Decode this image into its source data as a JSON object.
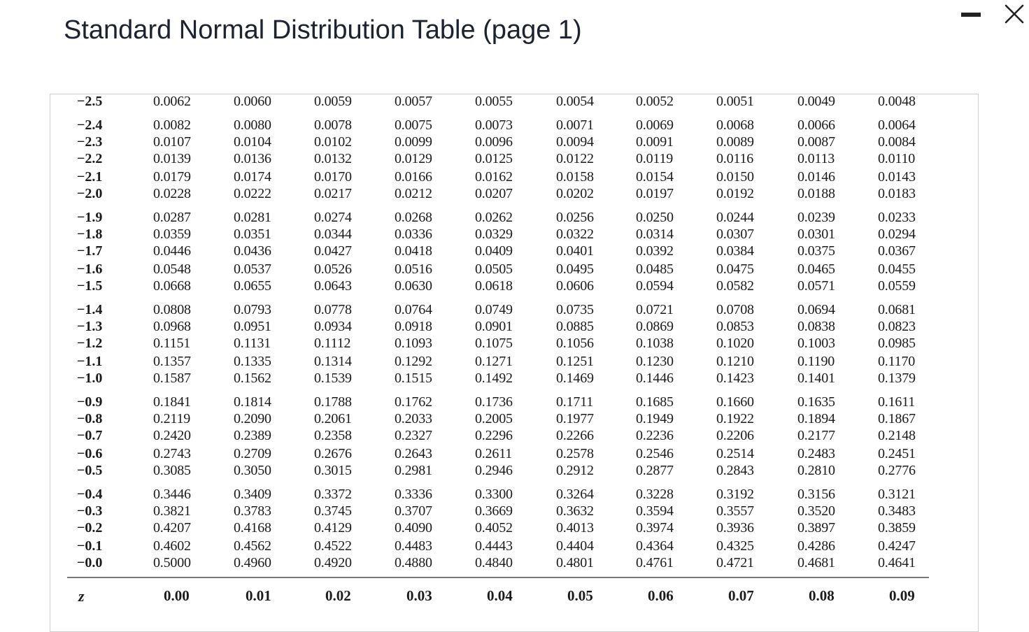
{
  "title": "Standard Normal Distribution Table (page 1)",
  "window_controls": {
    "minimize": "minimize",
    "close": "close"
  },
  "table": {
    "header_row_label": "z",
    "columns": [
      "0.00",
      "0.01",
      "0.02",
      "0.03",
      "0.04",
      "0.05",
      "0.06",
      "0.07",
      "0.08",
      "0.09"
    ],
    "rows": [
      {
        "z": "−2.5",
        "values": [
          "0.0062",
          "0.0060",
          "0.0059",
          "0.0057",
          "0.0055",
          "0.0054",
          "0.0052",
          "0.0051",
          "0.0049",
          "0.0048"
        ]
      },
      {
        "z": "−2.4",
        "values": [
          "0.0082",
          "0.0080",
          "0.0078",
          "0.0075",
          "0.0073",
          "0.0071",
          "0.0069",
          "0.0068",
          "0.0066",
          "0.0064"
        ]
      },
      {
        "z": "−2.3",
        "values": [
          "0.0107",
          "0.0104",
          "0.0102",
          "0.0099",
          "0.0096",
          "0.0094",
          "0.0091",
          "0.0089",
          "0.0087",
          "0.0084"
        ]
      },
      {
        "z": "−2.2",
        "values": [
          "0.0139",
          "0.0136",
          "0.0132",
          "0.0129",
          "0.0125",
          "0.0122",
          "0.0119",
          "0.0116",
          "0.0113",
          "0.0110"
        ]
      },
      {
        "z": "−2.1",
        "values": [
          "0.0179",
          "0.0174",
          "0.0170",
          "0.0166",
          "0.0162",
          "0.0158",
          "0.0154",
          "0.0150",
          "0.0146",
          "0.0143"
        ]
      },
      {
        "z": "−2.0",
        "values": [
          "0.0228",
          "0.0222",
          "0.0217",
          "0.0212",
          "0.0207",
          "0.0202",
          "0.0197",
          "0.0192",
          "0.0188",
          "0.0183"
        ]
      },
      {
        "z": "−1.9",
        "values": [
          "0.0287",
          "0.0281",
          "0.0274",
          "0.0268",
          "0.0262",
          "0.0256",
          "0.0250",
          "0.0244",
          "0.0239",
          "0.0233"
        ]
      },
      {
        "z": "−1.8",
        "values": [
          "0.0359",
          "0.0351",
          "0.0344",
          "0.0336",
          "0.0329",
          "0.0322",
          "0.0314",
          "0.0307",
          "0.0301",
          "0.0294"
        ]
      },
      {
        "z": "−1.7",
        "values": [
          "0.0446",
          "0.0436",
          "0.0427",
          "0.0418",
          "0.0409",
          "0.0401",
          "0.0392",
          "0.0384",
          "0.0375",
          "0.0367"
        ]
      },
      {
        "z": "−1.6",
        "values": [
          "0.0548",
          "0.0537",
          "0.0526",
          "0.0516",
          "0.0505",
          "0.0495",
          "0.0485",
          "0.0475",
          "0.0465",
          "0.0455"
        ]
      },
      {
        "z": "−1.5",
        "values": [
          "0.0668",
          "0.0655",
          "0.0643",
          "0.0630",
          "0.0618",
          "0.0606",
          "0.0594",
          "0.0582",
          "0.0571",
          "0.0559"
        ]
      },
      {
        "z": "−1.4",
        "values": [
          "0.0808",
          "0.0793",
          "0.0778",
          "0.0764",
          "0.0749",
          "0.0735",
          "0.0721",
          "0.0708",
          "0.0694",
          "0.0681"
        ]
      },
      {
        "z": "−1.3",
        "values": [
          "0.0968",
          "0.0951",
          "0.0934",
          "0.0918",
          "0.0901",
          "0.0885",
          "0.0869",
          "0.0853",
          "0.0838",
          "0.0823"
        ]
      },
      {
        "z": "−1.2",
        "values": [
          "0.1151",
          "0.1131",
          "0.1112",
          "0.1093",
          "0.1075",
          "0.1056",
          "0.1038",
          "0.1020",
          "0.1003",
          "0.0985"
        ]
      },
      {
        "z": "−1.1",
        "values": [
          "0.1357",
          "0.1335",
          "0.1314",
          "0.1292",
          "0.1271",
          "0.1251",
          "0.1230",
          "0.1210",
          "0.1190",
          "0.1170"
        ]
      },
      {
        "z": "−1.0",
        "values": [
          "0.1587",
          "0.1562",
          "0.1539",
          "0.1515",
          "0.1492",
          "0.1469",
          "0.1446",
          "0.1423",
          "0.1401",
          "0.1379"
        ]
      },
      {
        "z": "−0.9",
        "values": [
          "0.1841",
          "0.1814",
          "0.1788",
          "0.1762",
          "0.1736",
          "0.1711",
          "0.1685",
          "0.1660",
          "0.1635",
          "0.1611"
        ]
      },
      {
        "z": "−0.8",
        "values": [
          "0.2119",
          "0.2090",
          "0.2061",
          "0.2033",
          "0.2005",
          "0.1977",
          "0.1949",
          "0.1922",
          "0.1894",
          "0.1867"
        ]
      },
      {
        "z": "−0.7",
        "values": [
          "0.2420",
          "0.2389",
          "0.2358",
          "0.2327",
          "0.2296",
          "0.2266",
          "0.2236",
          "0.2206",
          "0.2177",
          "0.2148"
        ]
      },
      {
        "z": "−0.6",
        "values": [
          "0.2743",
          "0.2709",
          "0.2676",
          "0.2643",
          "0.2611",
          "0.2578",
          "0.2546",
          "0.2514",
          "0.2483",
          "0.2451"
        ]
      },
      {
        "z": "−0.5",
        "values": [
          "0.3085",
          "0.3050",
          "0.3015",
          "0.2981",
          "0.2946",
          "0.2912",
          "0.2877",
          "0.2843",
          "0.2810",
          "0.2776"
        ]
      },
      {
        "z": "−0.4",
        "values": [
          "0.3446",
          "0.3409",
          "0.3372",
          "0.3336",
          "0.3300",
          "0.3264",
          "0.3228",
          "0.3192",
          "0.3156",
          "0.3121"
        ]
      },
      {
        "z": "−0.3",
        "values": [
          "0.3821",
          "0.3783",
          "0.3745",
          "0.3707",
          "0.3669",
          "0.3632",
          "0.3594",
          "0.3557",
          "0.3520",
          "0.3483"
        ]
      },
      {
        "z": "−0.2",
        "values": [
          "0.4207",
          "0.4168",
          "0.4129",
          "0.4090",
          "0.4052",
          "0.4013",
          "0.3974",
          "0.3936",
          "0.3897",
          "0.3859"
        ]
      },
      {
        "z": "−0.1",
        "values": [
          "0.4602",
          "0.4562",
          "0.4522",
          "0.4483",
          "0.4443",
          "0.4404",
          "0.4364",
          "0.4325",
          "0.4286",
          "0.4247"
        ]
      },
      {
        "z": "−0.0",
        "values": [
          "0.5000",
          "0.4960",
          "0.4920",
          "0.4880",
          "0.4840",
          "0.4801",
          "0.4761",
          "0.4721",
          "0.4681",
          "0.4641"
        ]
      }
    ]
  }
}
